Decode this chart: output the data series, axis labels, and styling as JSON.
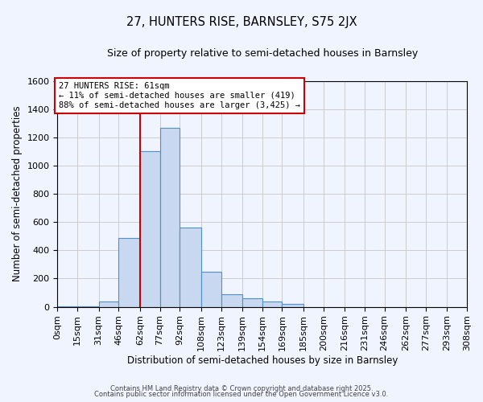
{
  "title": "27, HUNTERS RISE, BARNSLEY, S75 2JX",
  "subtitle": "Size of property relative to semi-detached houses in Barnsley",
  "xlabel": "Distribution of semi-detached houses by size in Barnsley",
  "ylabel": "Number of semi-detached properties",
  "bar_edges": [
    0,
    15,
    31,
    46,
    62,
    77,
    92,
    108,
    123,
    139,
    154,
    169,
    185,
    200,
    216,
    231,
    246,
    262,
    277,
    293,
    308
  ],
  "bar_heights": [
    5,
    5,
    35,
    490,
    1100,
    1270,
    560,
    250,
    90,
    60,
    40,
    20,
    0,
    0,
    0,
    0,
    0,
    0,
    0,
    0
  ],
  "bar_color": "#c8d8f0",
  "bar_edgecolor": "#5090c8",
  "property_line_x": 62,
  "property_line_color": "#cc0000",
  "annotation_title": "27 HUNTERS RISE: 61sqm",
  "annotation_line2": "← 11% of semi-detached houses are smaller (419)",
  "annotation_line3": "88% of semi-detached houses are larger (3,425) →",
  "annotation_box_edgecolor": "#cc0000",
  "annotation_box_facecolor": "#ffffff",
  "ylim": [
    0,
    1600
  ],
  "xlim": [
    0,
    308
  ],
  "tick_labels": [
    "0sqm",
    "15sqm",
    "31sqm",
    "46sqm",
    "62sqm",
    "77sqm",
    "92sqm",
    "108sqm",
    "123sqm",
    "139sqm",
    "154sqm",
    "169sqm",
    "185sqm",
    "200sqm",
    "216sqm",
    "231sqm",
    "246sqm",
    "262sqm",
    "277sqm",
    "293sqm",
    "308sqm"
  ],
  "tick_positions": [
    0,
    15,
    31,
    46,
    62,
    77,
    92,
    108,
    123,
    139,
    154,
    169,
    185,
    200,
    216,
    231,
    246,
    262,
    277,
    293,
    308
  ],
  "footer_line1": "Contains HM Land Registry data © Crown copyright and database right 2025.",
  "footer_line2": "Contains public sector information licensed under the Open Government Licence v3.0.",
  "bg_color": "#f0f4ff",
  "grid_color": "#cccccc"
}
